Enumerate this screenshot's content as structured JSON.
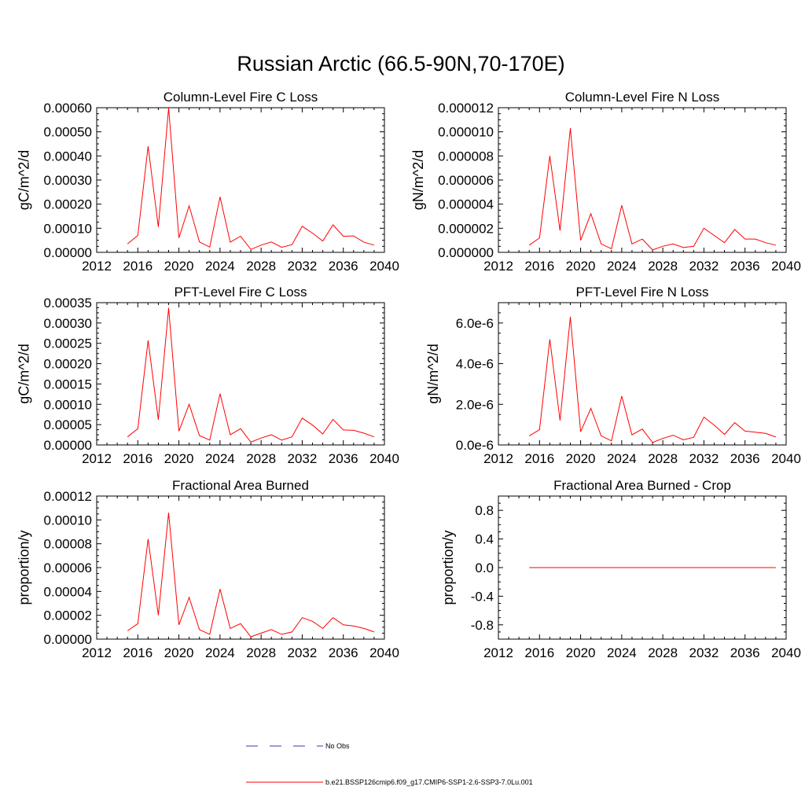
{
  "title": "Russian Arctic (66.5-90N,70-170E)",
  "legend": [
    {
      "label": "No Obs",
      "color": "#3a3aa8",
      "style": "dashed"
    },
    {
      "label": "b.e21.BSSP126cmip6.f09_g17.CMIP6-SSP1-2.6-SSP3-7.0Lu.001",
      "color": "#ff0000",
      "style": "solid"
    }
  ],
  "chart_data": [
    {
      "type": "line",
      "title": "Column-Level Fire C Loss",
      "xlabel": "",
      "ylabel": "gC/m^2/d",
      "xlim": [
        2012,
        2040
      ],
      "ylim": [
        0,
        0.0006
      ],
      "xticks": [
        2012,
        2016,
        2020,
        2024,
        2028,
        2032,
        2036,
        2040
      ],
      "xtick_labels": [
        "2012",
        "2016",
        "2020",
        "2024",
        "2028",
        "2032",
        "2036",
        "2040"
      ],
      "yticks": [
        0,
        0.0001,
        0.0002,
        0.0003,
        0.0004,
        0.0005,
        0.0006
      ],
      "ytick_labels": [
        "0.00000",
        "0.00010",
        "0.00020",
        "0.00030",
        "0.00040",
        "0.00050",
        "0.00060"
      ],
      "x": [
        2015,
        2016,
        2017,
        2018,
        2019,
        2020,
        2021,
        2022,
        2023,
        2024,
        2025,
        2026,
        2027,
        2028,
        2029,
        2030,
        2031,
        2032,
        2033,
        2034,
        2035,
        2036,
        2037,
        2038,
        2039
      ],
      "series": [
        {
          "values": [
            3.5e-05,
            7e-05,
            0.00044,
            0.000105,
            0.0006,
            6e-05,
            0.000193,
            4.3e-05,
            2.2e-05,
            0.00023,
            4.2e-05,
            6.7e-05,
            1.2e-05,
            3e-05,
            4.3e-05,
            2.1e-05,
            3.2e-05,
            0.000108,
            8e-05,
            4.7e-05,
            0.000114,
            6.7e-05,
            6.8e-05,
            4.2e-05,
            3e-05
          ],
          "color": "#ff0000"
        }
      ]
    },
    {
      "type": "line",
      "title": "Column-Level Fire N Loss",
      "xlabel": "",
      "ylabel": "gN/m^2/d",
      "xlim": [
        2012,
        2040
      ],
      "ylim": [
        0,
        1.2e-05
      ],
      "xticks": [
        2012,
        2016,
        2020,
        2024,
        2028,
        2032,
        2036,
        2040
      ],
      "xtick_labels": [
        "2012",
        "2016",
        "2020",
        "2024",
        "2028",
        "2032",
        "2036",
        "2040"
      ],
      "yticks": [
        0,
        2e-06,
        4e-06,
        6e-06,
        8e-06,
        1e-05,
        1.2e-05
      ],
      "ytick_labels": [
        "0.000000",
        "0.000002",
        "0.000004",
        "0.000006",
        "0.000008",
        "0.000010",
        "0.000012"
      ],
      "x": [
        2015,
        2016,
        2017,
        2018,
        2019,
        2020,
        2021,
        2022,
        2023,
        2024,
        2025,
        2026,
        2027,
        2028,
        2029,
        2030,
        2031,
        2032,
        2033,
        2034,
        2035,
        2036,
        2037,
        2038,
        2039
      ],
      "series": [
        {
          "values": [
            6e-07,
            1.2e-06,
            8e-06,
            1.8e-06,
            1.03e-05,
            1e-06,
            3.2e-06,
            7e-07,
            3e-07,
            3.9e-06,
            7e-07,
            1.1e-06,
            2e-07,
            5e-07,
            7e-07,
            4e-07,
            5e-07,
            2e-06,
            1.4e-06,
            8e-07,
            1.9e-06,
            1.1e-06,
            1.1e-06,
            8e-07,
            6e-07
          ],
          "color": "#ff0000"
        }
      ]
    },
    {
      "type": "line",
      "title": "PFT-Level Fire C Loss",
      "xlabel": "",
      "ylabel": "gC/m^2/d",
      "xlim": [
        2012,
        2040
      ],
      "ylim": [
        0,
        0.00035
      ],
      "xticks": [
        2012,
        2016,
        2020,
        2024,
        2028,
        2032,
        2036,
        2040
      ],
      "xtick_labels": [
        "2012",
        "2016",
        "2020",
        "2024",
        "2028",
        "2032",
        "2036",
        "2040"
      ],
      "yticks": [
        0,
        5e-05,
        0.0001,
        0.00015,
        0.0002,
        0.00025,
        0.0003,
        0.00035
      ],
      "ytick_labels": [
        "0.00000",
        "0.00005",
        "0.00010",
        "0.00015",
        "0.00020",
        "0.00025",
        "0.00030",
        "0.00035"
      ],
      "x": [
        2015,
        2016,
        2017,
        2018,
        2019,
        2020,
        2021,
        2022,
        2023,
        2024,
        2025,
        2026,
        2027,
        2028,
        2029,
        2030,
        2031,
        2032,
        2033,
        2034,
        2035,
        2036,
        2037,
        2038,
        2039
      ],
      "series": [
        {
          "values": [
            2e-05,
            4e-05,
            0.000257,
            6.2e-05,
            0.000337,
            3.4e-05,
            0.0001,
            2.3e-05,
            1.2e-05,
            0.000126,
            2.5e-05,
            4e-05,
            7e-06,
            1.7e-05,
            2.5e-05,
            1.2e-05,
            2e-05,
            6.6e-05,
            4.9e-05,
            2.7e-05,
            6.3e-05,
            3.7e-05,
            3.6e-05,
            2.9e-05,
            2e-05
          ],
          "color": "#ff0000"
        }
      ]
    },
    {
      "type": "line",
      "title": "PFT-Level Fire N Loss",
      "xlabel": "",
      "ylabel": "gN/m^2/d",
      "xlim": [
        2012,
        2040
      ],
      "ylim": [
        0,
        7e-06
      ],
      "xticks": [
        2012,
        2016,
        2020,
        2024,
        2028,
        2032,
        2036,
        2040
      ],
      "xtick_labels": [
        "2012",
        "2016",
        "2020",
        "2024",
        "2028",
        "2032",
        "2036",
        "2040"
      ],
      "yticks": [
        0,
        2e-06,
        4e-06,
        6e-06
      ],
      "ytick_labels": [
        "0.0e-6",
        "2.0e-6",
        "4.0e-6",
        "6.0e-6"
      ],
      "x": [
        2015,
        2016,
        2017,
        2018,
        2019,
        2020,
        2021,
        2022,
        2023,
        2024,
        2025,
        2026,
        2027,
        2028,
        2029,
        2030,
        2031,
        2032,
        2033,
        2034,
        2035,
        2036,
        2037,
        2038,
        2039
      ],
      "series": [
        {
          "values": [
            4.5e-07,
            7.5e-07,
            5.2e-06,
            1.2e-06,
            6.3e-06,
            6.5e-07,
            1.8e-06,
            4.5e-07,
            2e-07,
            2.4e-06,
            5e-07,
            7.8e-07,
            1.2e-07,
            3.2e-07,
            4.8e-07,
            2.5e-07,
            3.8e-07,
            1.37e-06,
            9.8e-07,
            5.2e-07,
            1.1e-06,
            6.8e-07,
            6.3e-07,
            5.7e-07,
            3.9e-07
          ],
          "color": "#ff0000"
        }
      ]
    },
    {
      "type": "line",
      "title": "Fractional Area Burned",
      "xlabel": "",
      "ylabel": "proportion/y",
      "xlim": [
        2012,
        2040
      ],
      "ylim": [
        0,
        0.00012
      ],
      "xticks": [
        2012,
        2016,
        2020,
        2024,
        2028,
        2032,
        2036,
        2040
      ],
      "xtick_labels": [
        "2012",
        "2016",
        "2020",
        "2024",
        "2028",
        "2032",
        "2036",
        "2040"
      ],
      "yticks": [
        0,
        2e-05,
        4e-05,
        6e-05,
        8e-05,
        0.0001,
        0.00012
      ],
      "ytick_labels": [
        "0.00000",
        "0.00002",
        "0.00004",
        "0.00006",
        "0.00008",
        "0.00010",
        "0.00012"
      ],
      "x": [
        2015,
        2016,
        2017,
        2018,
        2019,
        2020,
        2021,
        2022,
        2023,
        2024,
        2025,
        2026,
        2027,
        2028,
        2029,
        2030,
        2031,
        2032,
        2033,
        2034,
        2035,
        2036,
        2037,
        2038,
        2039
      ],
      "series": [
        {
          "values": [
            7e-06,
            1.3e-05,
            8.4e-05,
            2e-05,
            0.000106,
            1.2e-05,
            3.5e-05,
            8e-06,
            4e-06,
            4.2e-05,
            9e-06,
            1.3e-05,
            2e-06,
            5e-06,
            8e-06,
            4e-06,
            6e-06,
            1.8e-05,
            1.5e-05,
            9e-06,
            1.8e-05,
            1.2e-05,
            1.1e-05,
            9e-06,
            6e-06
          ],
          "color": "#ff0000"
        }
      ]
    },
    {
      "type": "line",
      "title": "Fractional Area Burned - Crop",
      "xlabel": "",
      "ylabel": "proportion/y",
      "xlim": [
        2012,
        2040
      ],
      "ylim": [
        -1,
        1
      ],
      "xticks": [
        2012,
        2016,
        2020,
        2024,
        2028,
        2032,
        2036,
        2040
      ],
      "xtick_labels": [
        "2012",
        "2016",
        "2020",
        "2024",
        "2028",
        "2032",
        "2036",
        "2040"
      ],
      "yticks": [
        -0.8,
        -0.4,
        0,
        0.4,
        0.8
      ],
      "ytick_labels": [
        "-0.8",
        "-0.4",
        "0.0",
        "0.4",
        "0.8"
      ],
      "x": [
        2015,
        2016,
        2017,
        2018,
        2019,
        2020,
        2021,
        2022,
        2023,
        2024,
        2025,
        2026,
        2027,
        2028,
        2029,
        2030,
        2031,
        2032,
        2033,
        2034,
        2035,
        2036,
        2037,
        2038,
        2039
      ],
      "series": [
        {
          "values": [
            0,
            0,
            0,
            0,
            0,
            0,
            0,
            0,
            0,
            0,
            0,
            0,
            0,
            0,
            0,
            0,
            0,
            0,
            0,
            0,
            0,
            0,
            0,
            0,
            0
          ],
          "color": "#ff0000"
        }
      ]
    }
  ]
}
